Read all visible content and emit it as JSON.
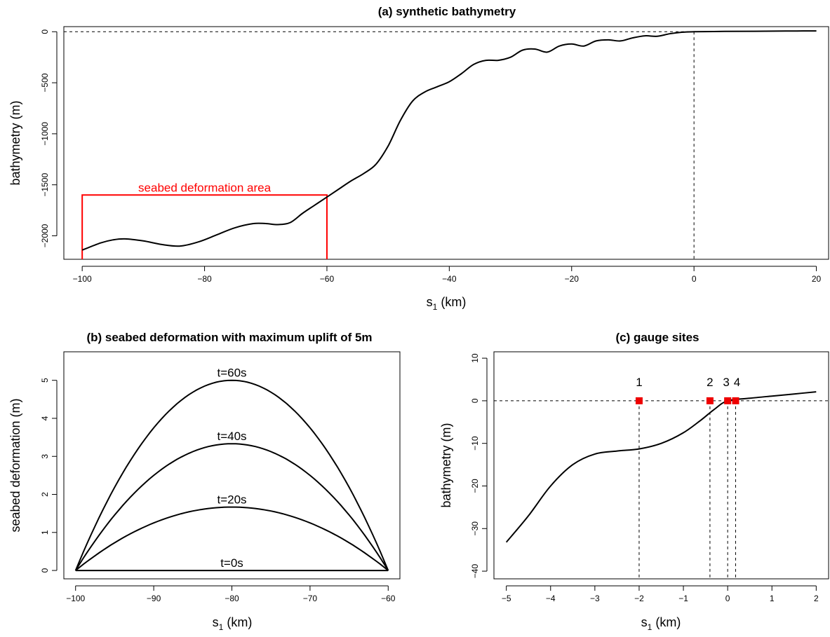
{
  "colors": {
    "curve": "#000000",
    "deformation_area": "#ff0000",
    "gauge_marker": "#ee0000",
    "reference_lines": "#000000"
  },
  "chart_data": [
    {
      "id": "panel-a",
      "type": "line",
      "title": "(a) synthetic bathymetry",
      "xlabel_main": "s",
      "xlabel_sub": "1",
      "xlabel_unit": " (km)",
      "ylabel": "bathymetry (m)",
      "xlim": [
        -103,
        22
      ],
      "ylim": [
        -2230,
        50
      ],
      "xticks": [
        -100,
        -80,
        -60,
        -40,
        -20,
        0,
        20
      ],
      "xtick_labels": [
        "−100",
        "−80",
        "−60",
        "−40",
        "−20",
        "0",
        "20"
      ],
      "yticks": [
        0,
        -500,
        -1000,
        -1500,
        -2000
      ],
      "ytick_labels": [
        "0",
        "−500",
        "−1000",
        "−1500",
        "−2000"
      ],
      "reference_lines": {
        "hline_y": 0,
        "vline_x": 0,
        "style": "dashed"
      },
      "annotation_box": {
        "x0": -100,
        "x1": -60,
        "y_top": -1600,
        "y_bottom": -2230,
        "label": "seabed deformation area"
      },
      "series": [
        {
          "x": [
            -100,
            -97,
            -95,
            -93,
            -90,
            -87,
            -84,
            -81,
            -78,
            -75,
            -72,
            -70,
            -68,
            -66,
            -64,
            -62,
            -60,
            -58,
            -56,
            -54,
            -52,
            -50,
            -48,
            -46,
            -44,
            -42,
            -40,
            -38,
            -36,
            -34,
            -32,
            -30,
            -28,
            -26,
            -24,
            -22,
            -20,
            -18,
            -16,
            -14,
            -12,
            -10,
            -8,
            -6,
            -4,
            -2,
            0,
            5,
            10,
            15,
            20
          ],
          "y": [
            -2140,
            -2070,
            -2040,
            -2030,
            -2050,
            -2085,
            -2100,
            -2060,
            -1990,
            -1920,
            -1880,
            -1880,
            -1890,
            -1870,
            -1780,
            -1700,
            -1620,
            -1540,
            -1460,
            -1390,
            -1300,
            -1120,
            -870,
            -680,
            -590,
            -540,
            -490,
            -410,
            -320,
            -280,
            -280,
            -250,
            -180,
            -170,
            -200,
            -140,
            -120,
            -140,
            -90,
            -80,
            -90,
            -60,
            -40,
            -45,
            -20,
            -5,
            0,
            3,
            5,
            7,
            8
          ]
        }
      ]
    },
    {
      "id": "panel-b",
      "type": "line",
      "title": "(b) seabed deformation with maximum uplift of 5m",
      "xlabel_main": "s",
      "xlabel_sub": "1",
      "xlabel_unit": " (km)",
      "ylabel": "seabed deformation (m)",
      "xlim": [
        -101.5,
        -58.5
      ],
      "ylim": [
        -0.22,
        5.75
      ],
      "xticks": [
        -100,
        -90,
        -80,
        -70,
        -60
      ],
      "xtick_labels": [
        "−100",
        "−90",
        "−80",
        "−70",
        "−60"
      ],
      "yticks": [
        0,
        1,
        2,
        3,
        4,
        5
      ],
      "ytick_labels": [
        "0",
        "1",
        "2",
        "3",
        "4",
        "5"
      ],
      "peak_x": -80,
      "half_width": 20,
      "series": [
        {
          "label": "t=0s",
          "peak": 0
        },
        {
          "label": "t=20s",
          "peak": 1.667
        },
        {
          "label": "t=40s",
          "peak": 3.333
        },
        {
          "label": "t=60s",
          "peak": 5
        }
      ]
    },
    {
      "id": "panel-c",
      "type": "line",
      "title": "(c) gauge sites",
      "xlabel_main": "s",
      "xlabel_sub": "1",
      "xlabel_unit": " (km)",
      "ylabel": "bathymetry (m)",
      "xlim": [
        -5.28,
        2.28
      ],
      "ylim": [
        -41.8,
        11.5
      ],
      "xticks": [
        -5,
        -4,
        -3,
        -2,
        -1,
        0,
        1,
        2
      ],
      "xtick_labels": [
        "−5",
        "−4",
        "−3",
        "−2",
        "−1",
        "0",
        "1",
        "2"
      ],
      "yticks": [
        10,
        0,
        -10,
        -20,
        -30,
        -40
      ],
      "ytick_labels": [
        "10",
        "0",
        "−10",
        "−20",
        "−30",
        "−40"
      ],
      "reference_lines": {
        "hline_y": 0,
        "style": "dashed"
      },
      "series": [
        {
          "x": [
            -5,
            -4.5,
            -4,
            -3.5,
            -3,
            -2.5,
            -2,
            -1.5,
            -1,
            -0.6,
            -0.3,
            0,
            0.5,
            1,
            1.5,
            2
          ],
          "y": [
            -33.2,
            -27,
            -20,
            -15,
            -12.5,
            -11.8,
            -11.3,
            -10,
            -7.5,
            -4.5,
            -2,
            0,
            0.6,
            1.1,
            1.6,
            2.1
          ]
        }
      ],
      "gauges": [
        {
          "label": "1",
          "x": -2
        },
        {
          "label": "2",
          "x": -0.4
        },
        {
          "label": "3",
          "x": 0
        },
        {
          "label": "4",
          "x": 0.18
        }
      ]
    }
  ]
}
